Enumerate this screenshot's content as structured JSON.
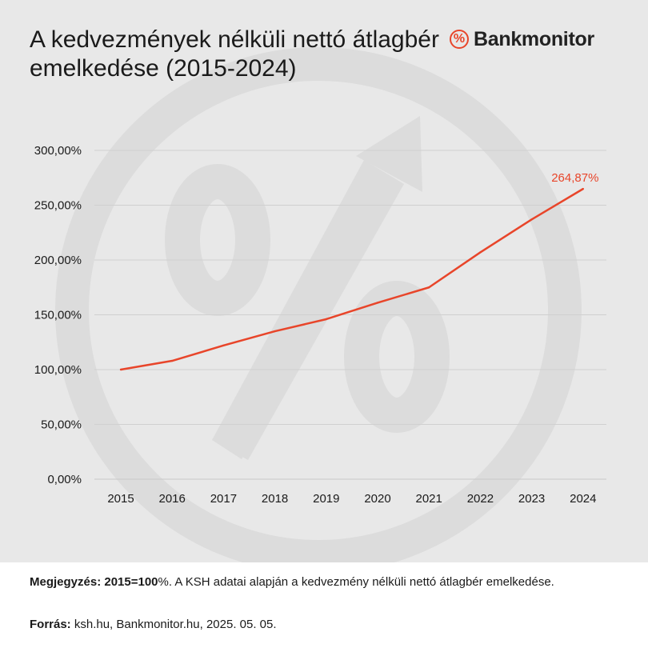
{
  "header": {
    "title": "A kedvezmények nélküli nettó átlagbér emelkedése (2015-2024)",
    "logo_symbol": "%",
    "logo_text": "Bankmonitor"
  },
  "chart_data": {
    "type": "line",
    "title": "A kedvezmények nélküli nettó átlagbér emelkedése (2015-2024)",
    "x": [
      "2015",
      "2016",
      "2017",
      "2018",
      "2019",
      "2020",
      "2021",
      "2022",
      "2023",
      "2024"
    ],
    "series": [
      {
        "values": [
          100,
          108,
          122,
          135,
          146,
          161,
          175,
          207,
          237,
          264.87
        ]
      }
    ],
    "yticks": [
      "0,00%",
      "50,00%",
      "100,00%",
      "150,00%",
      "200,00%",
      "250,00%",
      "300,00%"
    ],
    "ytick_values": [
      0,
      50,
      100,
      150,
      200,
      250,
      300
    ],
    "ylim": [
      0,
      300
    ],
    "data_label": "264,87%",
    "grid": true,
    "line_color": "#e8452a"
  },
  "footer": {
    "note_label": "Megjegyzés: 2015=100",
    "note_text": "%. A KSH adatai alapján a kedvezmény nélküli nettó átlagbér emelkedése.",
    "source_label": "Forrás:",
    "source_text": " ksh.hu, Bankmonitor.hu, 2025. 05. 05."
  }
}
